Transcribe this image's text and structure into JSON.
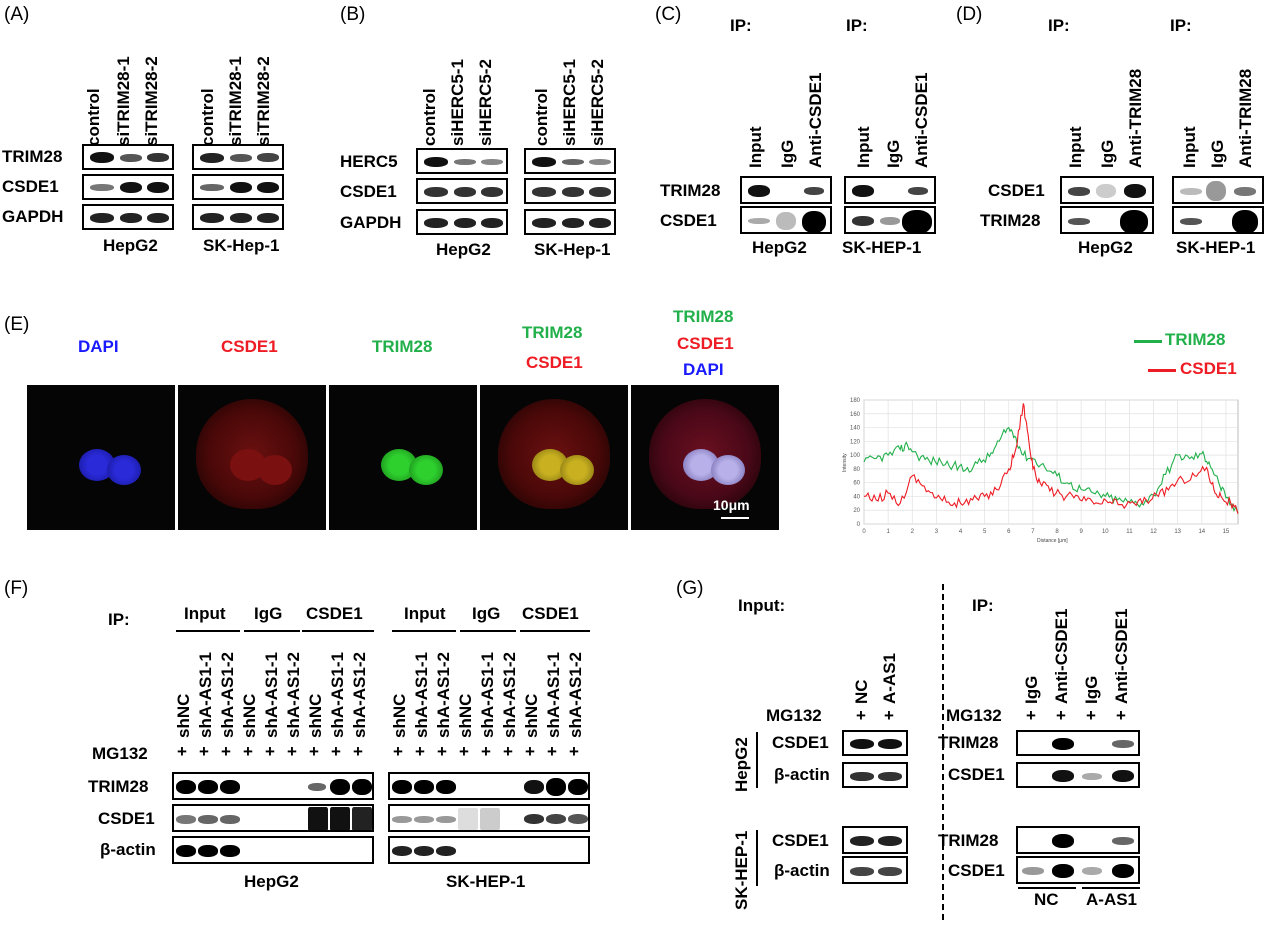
{
  "panelA": {
    "label": "(A)",
    "lanes": [
      "control",
      "siTRIM28-1",
      "siTRIM28-2"
    ],
    "rows": [
      "TRIM28",
      "CSDE1",
      "GAPDH"
    ],
    "cells": [
      "HepG2",
      "SK-Hep-1"
    ]
  },
  "panelB": {
    "label": "(B)",
    "lanes": [
      "control",
      "siHERC5-1",
      "siHERC5-2"
    ],
    "rows": [
      "HERC5",
      "CSDE1",
      "GAPDH"
    ],
    "cells": [
      "HepG2",
      "SK-Hep-1"
    ]
  },
  "panelC": {
    "label": "(C)",
    "ip": "IP:",
    "lanes": [
      "Input",
      "IgG",
      "Anti-CSDE1"
    ],
    "rows": [
      "TRIM28",
      "CSDE1"
    ],
    "cells": [
      "HepG2",
      "SK-HEP-1"
    ]
  },
  "panelD": {
    "label": "(D)",
    "ip": "IP:",
    "lanes": [
      "Input",
      "IgG",
      "Anti-TRIM28"
    ],
    "rows": [
      "CSDE1",
      "TRIM28"
    ],
    "cells": [
      "HepG2",
      "SK-HEP-1"
    ]
  },
  "panelE": {
    "label": "(E)",
    "titles": {
      "dapi": "DAPI",
      "csde1": "CSDE1",
      "trim28": "TRIM28",
      "merge1_a": "TRIM28",
      "merge1_b": "CSDE1",
      "merge2_a": "TRIM28",
      "merge2_b": "CSDE1",
      "merge2_c": "DAPI"
    },
    "scalebar": "10μm",
    "legend": [
      "TRIM28",
      "CSDE1"
    ],
    "colors": {
      "green": "#22b04b",
      "red": "#ee1c24",
      "blue": "#1a1aff"
    }
  },
  "chart_data": {
    "type": "line",
    "xlabel": "Distance [μm]",
    "ylabel": "Intensity",
    "xlim": [
      0,
      15.5
    ],
    "ylim": [
      0,
      180
    ],
    "xticks": [
      "0",
      "1",
      "2",
      "3",
      "4",
      "5",
      "6",
      "7",
      "8",
      "9",
      "10",
      "11",
      "12",
      "13",
      "14",
      "15"
    ],
    "yticks": [
      "0",
      "20",
      "40",
      "60",
      "80",
      "100",
      "120",
      "140",
      "160",
      "180"
    ],
    "grid": true,
    "legend_position": "top-right",
    "series": [
      {
        "name": "TRIM28",
        "color": "#22b04b",
        "x": [
          0,
          0.5,
          1,
          1.5,
          1.8,
          2.2,
          2.7,
          3.2,
          3.7,
          4.2,
          4.7,
          5.2,
          5.6,
          6.0,
          6.3,
          6.6,
          7.0,
          7.5,
          8.0,
          8.5,
          9.0,
          9.5,
          10.0,
          10.5,
          11.0,
          11.5,
          12.0,
          12.5,
          13.0,
          13.5,
          14.0,
          14.3,
          14.7,
          15.0,
          15.5
        ],
        "y": [
          90,
          95,
          100,
          108,
          115,
          100,
          92,
          90,
          85,
          78,
          88,
          98,
          120,
          140,
          125,
          100,
          95,
          82,
          70,
          58,
          50,
          45,
          40,
          35,
          32,
          30,
          42,
          72,
          100,
          95,
          102,
          90,
          60,
          38,
          15
        ]
      },
      {
        "name": "CSDE1",
        "color": "#ee1c24",
        "x": [
          0,
          0.5,
          1,
          1.5,
          2,
          2.5,
          3,
          3.5,
          4,
          4.5,
          5,
          5.5,
          6,
          6.3,
          6.6,
          6.8,
          7.0,
          7.3,
          7.7,
          8.2,
          8.7,
          9.2,
          9.7,
          10.2,
          10.7,
          11.2,
          11.7,
          12.2,
          12.7,
          13.2,
          13.7,
          14.2,
          14.5,
          14.8,
          15.2,
          15.5
        ],
        "y": [
          40,
          35,
          45,
          30,
          70,
          55,
          38,
          32,
          30,
          35,
          40,
          50,
          80,
          110,
          175,
          130,
          80,
          60,
          48,
          42,
          38,
          34,
          30,
          32,
          28,
          30,
          35,
          40,
          55,
          65,
          70,
          82,
          50,
          40,
          30,
          15
        ]
      }
    ]
  },
  "panelF": {
    "label": "(F)",
    "ip": "IP:",
    "groups": [
      "Input",
      "IgG",
      "CSDE1"
    ],
    "lanes": [
      "shNC",
      "shA-AS1-1",
      "shA-AS1-2"
    ],
    "mg132": "MG132",
    "plus": "+",
    "rows": [
      "TRIM28",
      "CSDE1",
      "β-actin"
    ],
    "cells": [
      "HepG2",
      "SK-HEP-1"
    ]
  },
  "panelG": {
    "label": "(G)",
    "input": "Input:",
    "ip": "IP:",
    "mg132": "MG132",
    "plus": "+",
    "input_lanes": [
      "NC",
      "A-AS1"
    ],
    "ip_lanes": [
      "IgG",
      "Anti-CSDE1",
      "IgG",
      "Anti-CSDE1"
    ],
    "input_rows": [
      "CSDE1",
      "β-actin"
    ],
    "ip_rows": [
      "TRIM28",
      "CSDE1"
    ],
    "cells": [
      "HepG2",
      "SK-HEP-1"
    ],
    "groups": [
      "NC",
      "A-AS1"
    ]
  }
}
